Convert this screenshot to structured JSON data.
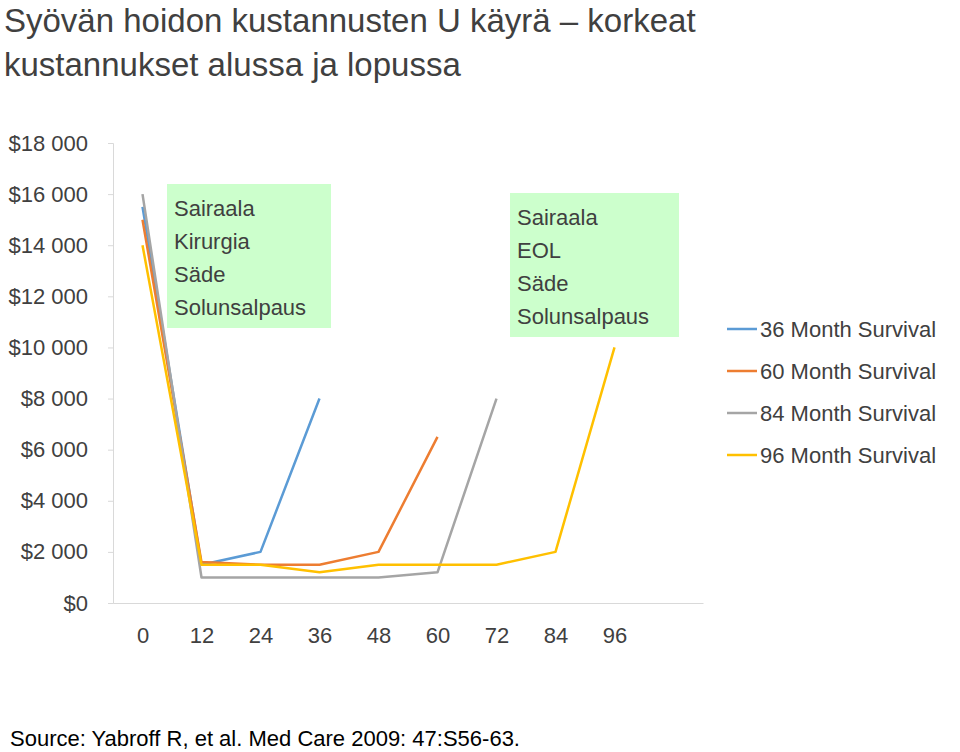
{
  "chart_data": {
    "type": "line",
    "title": "Syövän hoidon kustannusten U käyrä – korkeat kustannukset alussa ja lopussa",
    "x": [
      0,
      12,
      24,
      36,
      48,
      60,
      72,
      84,
      96
    ],
    "xlim": [
      -6,
      114
    ],
    "xticks": [
      0,
      12,
      24,
      36,
      48,
      60,
      72,
      84,
      96
    ],
    "ylim": [
      0,
      18000
    ],
    "yticks": [
      {
        "value": 0,
        "label": "$0"
      },
      {
        "value": 2000,
        "label": "$2 000"
      },
      {
        "value": 4000,
        "label": "$4 000"
      },
      {
        "value": 6000,
        "label": "$6 000"
      },
      {
        "value": 8000,
        "label": "$8 000"
      },
      {
        "value": 10000,
        "label": "$10 000"
      },
      {
        "value": 12000,
        "label": "$12 000"
      },
      {
        "value": 14000,
        "label": "$14 000"
      },
      {
        "value": 16000,
        "label": "$16 000"
      },
      {
        "value": 18000,
        "label": "$18 000"
      }
    ],
    "grid": false,
    "legend": "right",
    "series": [
      {
        "name": "36 Month Survival",
        "color": "#5b9bd5",
        "values": [
          15500,
          1500,
          2000,
          8000,
          null,
          null,
          null,
          null,
          null
        ]
      },
      {
        "name": "60 Month Survival",
        "color": "#ed7d31",
        "values": [
          15000,
          1600,
          1500,
          1500,
          2000,
          6500,
          null,
          null,
          null
        ]
      },
      {
        "name": "84 Month Survival",
        "color": "#a5a5a5",
        "values": [
          16000,
          1000,
          1000,
          1000,
          1000,
          1200,
          8000,
          null,
          null
        ]
      },
      {
        "name": "96 Month Survival",
        "color": "#ffc000",
        "values": [
          14000,
          1500,
          1500,
          1200,
          1500,
          1500,
          1500,
          2000,
          10000
        ]
      }
    ],
    "annotations": [
      {
        "lines": [
          "Sairaala",
          "Kirurgia",
          "Säde",
          "Solunsalpaus"
        ]
      },
      {
        "lines": [
          "Sairaala",
          "EOL",
          "Säde",
          "Solunsalpaus"
        ]
      }
    ],
    "source": "Source: Yabroff R, et al. Med Care 2009: 47:S56-63."
  }
}
